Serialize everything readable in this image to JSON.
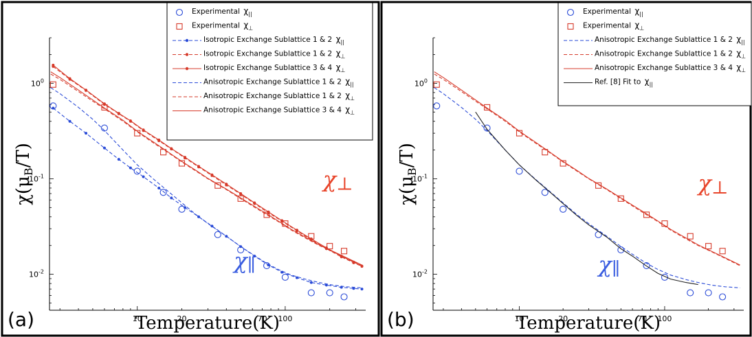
{
  "chart_data": [
    {
      "type": "line",
      "panel_label": "(a)",
      "xlabel": "Temperature(K)",
      "ylabel": "χ(μB/T)",
      "x_scale": "log",
      "y_scale": "log",
      "xlim": [
        2.55,
        350
      ],
      "ylim": [
        0.0042,
        3.0
      ],
      "x_tick_labels": [
        10,
        20,
        70,
        100
      ],
      "y_tick_labels": [
        {
          "value": 1,
          "base": "10",
          "exp": "0"
        },
        {
          "value": 0.1,
          "base": "10",
          "exp": "-1"
        },
        {
          "value": 0.01,
          "base": "10",
          "exp": "-2"
        }
      ],
      "legend_position": "top-right",
      "annotations": [
        {
          "text": "χ⊥",
          "color": "#e8442a",
          "x": 180,
          "y": 0.082
        },
        {
          "text": "χ∥",
          "color": "#3a5de0",
          "x": 45,
          "y": 0.0115
        }
      ],
      "series": [
        {
          "name": "Experimental",
          "sub": "||",
          "kind": "marker",
          "marker": "circle",
          "color": "#2a4bd7",
          "x": [
            2.7,
            6,
            10,
            15,
            20,
            35,
            50,
            75,
            100,
            150,
            200,
            250
          ],
          "y": [
            0.58,
            0.34,
            0.12,
            0.072,
            0.048,
            0.026,
            0.018,
            0.0123,
            0.0093,
            0.0064,
            0.0064,
            0.0058
          ]
        },
        {
          "name": "Experimental",
          "sub": "⊥",
          "kind": "marker",
          "marker": "square",
          "color": "#d63a2a",
          "x": [
            2.7,
            6,
            10,
            15,
            20,
            35,
            50,
            75,
            100,
            150,
            200,
            250
          ],
          "y": [
            0.97,
            0.56,
            0.3,
            0.19,
            0.145,
            0.085,
            0.062,
            0.042,
            0.034,
            0.025,
            0.0197,
            0.0175
          ]
        },
        {
          "name": "Isotropic Exchange Sublattice 1 & 2",
          "sub": "||",
          "kind": "line-dot",
          "dash": true,
          "color": "#2a4bd7",
          "x": [
            2.7,
            3.5,
            4.5,
            6,
            7.5,
            9,
            11,
            14,
            17,
            21,
            26,
            32,
            40,
            50,
            62,
            77,
            95,
            120,
            150,
            190,
            240,
            290,
            330
          ],
          "y": [
            0.55,
            0.4,
            0.3,
            0.21,
            0.16,
            0.13,
            0.105,
            0.08,
            0.063,
            0.05,
            0.04,
            0.032,
            0.025,
            0.0195,
            0.0155,
            0.0125,
            0.0105,
            0.0092,
            0.0082,
            0.0077,
            0.0073,
            0.0071,
            0.007
          ]
        },
        {
          "name": "Isotropic Exchange Sublattice 1 & 2",
          "sub": "⊥",
          "kind": "line-dot",
          "dash": true,
          "color": "#d63a2a",
          "x": [
            2.7,
            3.5,
            4.5,
            6,
            7.5,
            9,
            11,
            14,
            17,
            21,
            26,
            32,
            40,
            50,
            62,
            77,
            95,
            120,
            150,
            190,
            240,
            290,
            330
          ],
          "y": [
            1.5,
            1.1,
            0.84,
            0.6,
            0.48,
            0.4,
            0.32,
            0.25,
            0.205,
            0.165,
            0.133,
            0.108,
            0.086,
            0.069,
            0.055,
            0.044,
            0.036,
            0.0285,
            0.023,
            0.0185,
            0.0152,
            0.0132,
            0.0121
          ]
        },
        {
          "name": "Isotropic Exchange Sublattice 3 & 4",
          "sub": "⊥",
          "kind": "line-dot",
          "dash": false,
          "color": "#d63a2a",
          "x": [
            2.7,
            3.5,
            4.5,
            6,
            7.5,
            9,
            11,
            14,
            17,
            21,
            26,
            32,
            40,
            50,
            62,
            77,
            95,
            120,
            150,
            190,
            240,
            290,
            330
          ],
          "y": [
            1.55,
            1.12,
            0.85,
            0.61,
            0.485,
            0.405,
            0.325,
            0.255,
            0.207,
            0.168,
            0.135,
            0.11,
            0.088,
            0.07,
            0.056,
            0.045,
            0.0365,
            0.029,
            0.0235,
            0.0189,
            0.0155,
            0.0134,
            0.0122
          ]
        },
        {
          "name": "Anisotropic Exchange Sublattice 1 & 2",
          "sub": "||",
          "kind": "line",
          "dash": true,
          "color": "#2a4bd7",
          "x": [
            2.6,
            3,
            4,
            5,
            6,
            8,
            10,
            13,
            16,
            20,
            25,
            30,
            40,
            50,
            60,
            75,
            90,
            110,
            140,
            170,
            210,
            260,
            330
          ],
          "y": [
            0.9,
            0.78,
            0.56,
            0.42,
            0.32,
            0.2,
            0.14,
            0.098,
            0.075,
            0.056,
            0.042,
            0.034,
            0.025,
            0.0195,
            0.0162,
            0.013,
            0.0112,
            0.0098,
            0.0088,
            0.0082,
            0.0077,
            0.0074,
            0.0072
          ]
        },
        {
          "name": "Anisotropic Exchange Sublattice 1 & 2",
          "sub": "⊥",
          "kind": "line",
          "dash": true,
          "color": "#d63a2a",
          "x": [
            2.6,
            3,
            4,
            5,
            6,
            8,
            10,
            13,
            16,
            20,
            25,
            30,
            40,
            50,
            60,
            75,
            90,
            110,
            140,
            170,
            210,
            260,
            330
          ],
          "y": [
            1.25,
            1.1,
            0.82,
            0.65,
            0.54,
            0.4,
            0.31,
            0.235,
            0.19,
            0.15,
            0.12,
            0.1,
            0.077,
            0.062,
            0.052,
            0.042,
            0.0355,
            0.029,
            0.0235,
            0.02,
            0.0172,
            0.0147,
            0.0123
          ]
        },
        {
          "name": "Anisotropic Exchange Sublattice 3 & 4",
          "sub": "⊥",
          "kind": "line",
          "dash": false,
          "color": "#d63a2a",
          "x": [
            2.6,
            3,
            4,
            5,
            6,
            8,
            10,
            13,
            16,
            20,
            25,
            30,
            40,
            50,
            60,
            75,
            90,
            110,
            140,
            170,
            210,
            260,
            330
          ],
          "y": [
            1.32,
            1.15,
            0.85,
            0.67,
            0.55,
            0.41,
            0.315,
            0.24,
            0.193,
            0.152,
            0.122,
            0.101,
            0.078,
            0.063,
            0.053,
            0.043,
            0.036,
            0.0295,
            0.024,
            0.0203,
            0.0174,
            0.0149,
            0.0125
          ]
        }
      ]
    },
    {
      "type": "line",
      "panel_label": "(b)",
      "xlabel": "Temperature(K)",
      "ylabel": "χ(μB/T)",
      "x_scale": "log",
      "y_scale": "log",
      "xlim": [
        2.55,
        350
      ],
      "ylim": [
        0.0042,
        3.0
      ],
      "x_tick_labels": [
        10,
        20,
        70,
        100
      ],
      "y_tick_labels": [
        {
          "value": 1,
          "base": "10",
          "exp": "0"
        },
        {
          "value": 0.1,
          "base": "10",
          "exp": "-1"
        },
        {
          "value": 0.01,
          "base": "10",
          "exp": "-2"
        }
      ],
      "legend_position": "top-right",
      "annotations": [
        {
          "text": "χ⊥",
          "color": "#e8442a",
          "x": 170,
          "y": 0.075
        },
        {
          "text": "χ∥",
          "color": "#3a5de0",
          "x": 35,
          "y": 0.0105
        }
      ],
      "series": [
        {
          "name": "Experimental",
          "sub": "||",
          "kind": "marker",
          "marker": "circle",
          "color": "#2a4bd7",
          "x": [
            2.7,
            6,
            10,
            15,
            20,
            35,
            50,
            75,
            100,
            150,
            200,
            250
          ],
          "y": [
            0.58,
            0.34,
            0.12,
            0.072,
            0.048,
            0.026,
            0.018,
            0.0123,
            0.0093,
            0.0064,
            0.0064,
            0.0058
          ]
        },
        {
          "name": "Experimental",
          "sub": "⊥",
          "kind": "marker",
          "marker": "square",
          "color": "#d63a2a",
          "x": [
            2.7,
            6,
            10,
            15,
            20,
            35,
            50,
            75,
            100,
            150,
            200,
            250
          ],
          "y": [
            0.97,
            0.56,
            0.3,
            0.19,
            0.145,
            0.085,
            0.062,
            0.042,
            0.034,
            0.025,
            0.0197,
            0.0175
          ]
        },
        {
          "name": "Anisotropic Exchange Sublattice 1 & 2",
          "sub": "||",
          "kind": "line",
          "dash": true,
          "color": "#2a4bd7",
          "x": [
            2.6,
            3,
            4,
            5,
            6,
            8,
            10,
            13,
            16,
            20,
            25,
            30,
            40,
            50,
            60,
            75,
            90,
            110,
            140,
            170,
            210,
            260,
            330
          ],
          "y": [
            0.9,
            0.78,
            0.56,
            0.42,
            0.32,
            0.2,
            0.14,
            0.098,
            0.075,
            0.056,
            0.042,
            0.034,
            0.025,
            0.0195,
            0.0162,
            0.013,
            0.0112,
            0.0098,
            0.0088,
            0.0082,
            0.0077,
            0.0074,
            0.0072
          ]
        },
        {
          "name": "Anisotropic Exchange Sublattice 1 & 2",
          "sub": "⊥",
          "kind": "line",
          "dash": true,
          "color": "#d63a2a",
          "x": [
            2.6,
            3,
            4,
            5,
            6,
            8,
            10,
            13,
            16,
            20,
            25,
            30,
            40,
            50,
            60,
            75,
            90,
            110,
            140,
            170,
            210,
            260,
            330
          ],
          "y": [
            1.25,
            1.1,
            0.82,
            0.65,
            0.54,
            0.4,
            0.31,
            0.235,
            0.19,
            0.15,
            0.12,
            0.1,
            0.077,
            0.062,
            0.052,
            0.042,
            0.0355,
            0.029,
            0.0235,
            0.02,
            0.0172,
            0.0147,
            0.0123
          ]
        },
        {
          "name": "Anisotropic Exchange Sublattice 3 & 4",
          "sub": "⊥",
          "kind": "line",
          "dash": false,
          "color": "#d63a2a",
          "x": [
            2.6,
            3,
            4,
            5,
            6,
            8,
            10,
            13,
            16,
            20,
            25,
            30,
            40,
            50,
            60,
            75,
            90,
            110,
            140,
            170,
            210,
            260,
            330
          ],
          "y": [
            1.32,
            1.15,
            0.85,
            0.67,
            0.55,
            0.41,
            0.315,
            0.24,
            0.193,
            0.152,
            0.122,
            0.101,
            0.078,
            0.063,
            0.053,
            0.043,
            0.036,
            0.0295,
            0.024,
            0.0203,
            0.0174,
            0.0149,
            0.0125
          ]
        },
        {
          "name": "Ref. [8] Fit to",
          "sub": "||",
          "kind": "line",
          "dash": false,
          "color": "#222222",
          "x": [
            5,
            6,
            8,
            10,
            13,
            16,
            20,
            25,
            30,
            40,
            50,
            60,
            75,
            90,
            110,
            140,
            170
          ],
          "y": [
            0.5,
            0.33,
            0.2,
            0.14,
            0.097,
            0.074,
            0.055,
            0.041,
            0.033,
            0.0245,
            0.0185,
            0.0155,
            0.0122,
            0.0102,
            0.0089,
            0.0082,
            0.0078
          ]
        }
      ]
    }
  ]
}
